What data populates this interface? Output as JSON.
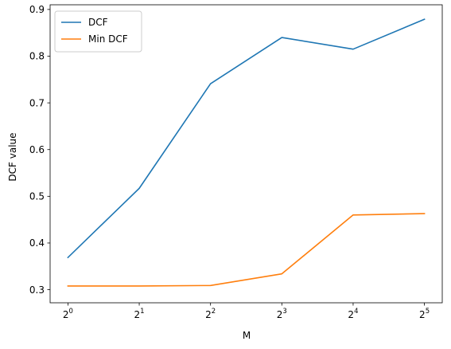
{
  "chart_data": {
    "type": "line",
    "xlabel": "M",
    "ylabel": "DCF value",
    "x_scale": "log2",
    "x": [
      1,
      2,
      4,
      8,
      16,
      32
    ],
    "x_tick_labels": [
      {
        "base": "2",
        "exp": "0"
      },
      {
        "base": "2",
        "exp": "1"
      },
      {
        "base": "2",
        "exp": "2"
      },
      {
        "base": "2",
        "exp": "3"
      },
      {
        "base": "2",
        "exp": "4"
      },
      {
        "base": "2",
        "exp": "5"
      }
    ],
    "y_ticks": [
      "0.3",
      "0.4",
      "0.5",
      "0.6",
      "0.7",
      "0.8",
      "0.9"
    ],
    "ylim": [
      0.272,
      0.91
    ],
    "grid": false,
    "legend_position": "upper-left",
    "series": [
      {
        "name": "DCF",
        "color": "#1f77b4",
        "values": [
          0.369,
          0.517,
          0.741,
          0.84,
          0.815,
          0.879
        ]
      },
      {
        "name": "Min DCF",
        "color": "#ff7f0e",
        "values": [
          0.308,
          0.308,
          0.309,
          0.334,
          0.46,
          0.463
        ]
      }
    ]
  }
}
